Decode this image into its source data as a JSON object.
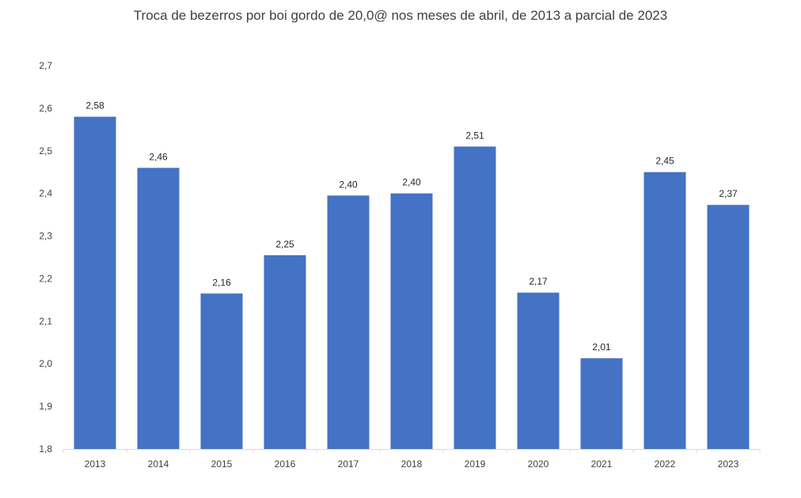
{
  "chart_data": {
    "type": "bar",
    "title": "Troca de bezerros por boi gordo de 20,0@ nos meses de abril, de 2013 a parcial de 2023",
    "xlabel": "",
    "ylabel": "",
    "categories": [
      "2013",
      "2014",
      "2015",
      "2016",
      "2017",
      "2018",
      "2019",
      "2020",
      "2021",
      "2022",
      "2023"
    ],
    "values": [
      2.58,
      2.46,
      2.165,
      2.255,
      2.395,
      2.4,
      2.51,
      2.167,
      2.013,
      2.45,
      2.373
    ],
    "data_labels": [
      "2,58",
      "2,46",
      "2,16",
      "2,25",
      "2,40",
      "2,40",
      "2,51",
      "2,17",
      "2,01",
      "2,45",
      "2,37"
    ],
    "ylim": [
      1.8,
      2.7
    ],
    "yticks": [
      1.8,
      1.9,
      2.0,
      2.1,
      2.2,
      2.3,
      2.4,
      2.5,
      2.6,
      2.7
    ],
    "ytick_labels": [
      "1,8",
      "1,9",
      "2,0",
      "2,1",
      "2,2",
      "2,3",
      "2,4",
      "2,5",
      "2,6",
      "2,7"
    ],
    "grid": false,
    "legend": "none",
    "bar_color": "#4472C4",
    "axis_color": "#D9D9D9",
    "text_color": "#404040"
  }
}
